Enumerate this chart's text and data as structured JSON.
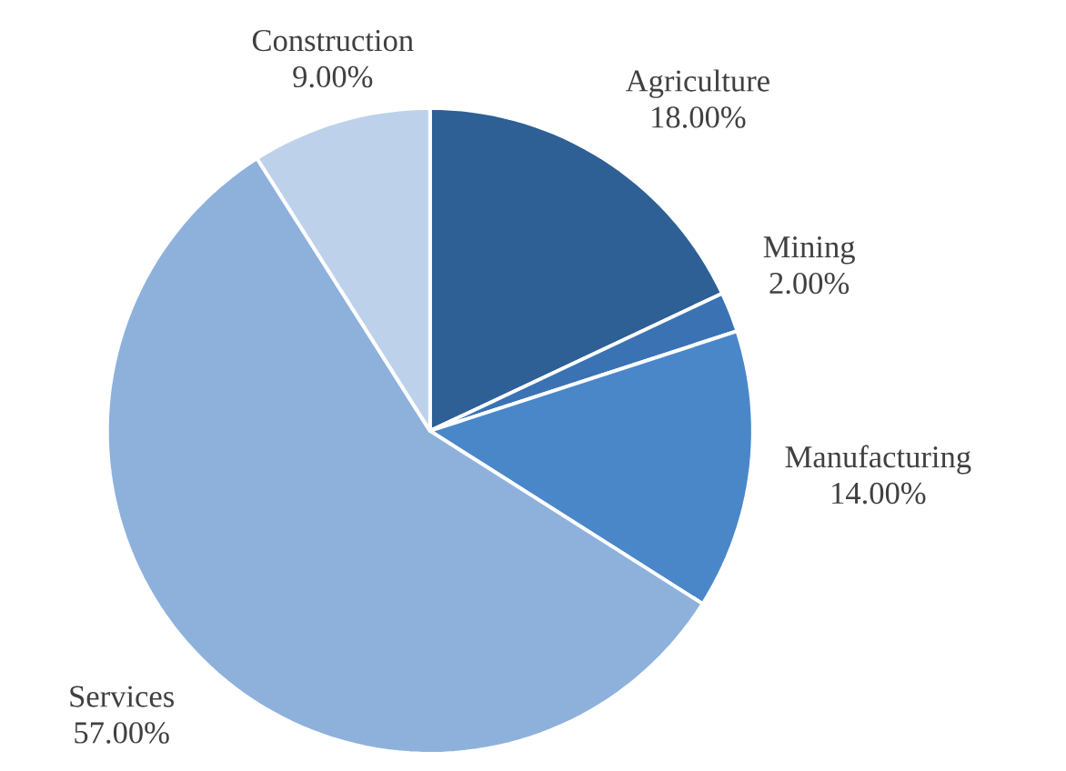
{
  "chart_data": {
    "type": "pie",
    "categories": [
      "Agriculture",
      "Mining",
      "Manufacturing",
      "Services",
      "Construction"
    ],
    "values": [
      18,
      2,
      14,
      57,
      9
    ],
    "value_labels": [
      "18.00%",
      "2.00%",
      "14.00%",
      "57.00%",
      "9.00%"
    ],
    "colors": [
      "#2e5f95",
      "#3b72b3",
      "#4a87c9",
      "#8eb1dc",
      "#bdd1eb"
    ]
  }
}
